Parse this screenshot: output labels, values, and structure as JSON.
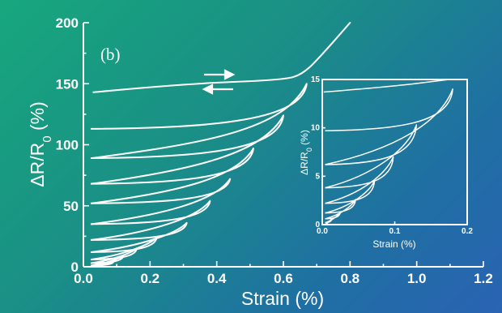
{
  "chart_data": [
    {
      "type": "line",
      "panel_label": "(b)",
      "xlabel": "Strain (%)",
      "ylabel": "ΔR/R₀ (%)",
      "xlim": [
        0.0,
        1.2
      ],
      "ylim": [
        0,
        200
      ],
      "xticks": [
        "0.0",
        "0.2",
        "0.4",
        "0.6",
        "0.8",
        "1.0",
        "1.2"
      ],
      "yticks": [
        "0",
        "50",
        "100",
        "150",
        "200"
      ],
      "grid": false,
      "loops": [
        {
          "peak_strain": 0.09,
          "peak_value": 4,
          "final_value": 1
        },
        {
          "peak_strain": 0.12,
          "peak_value": 9,
          "final_value": 3
        },
        {
          "peak_strain": 0.16,
          "peak_value": 15,
          "final_value": 6
        },
        {
          "peak_strain": 0.22,
          "peak_value": 24,
          "final_value": 12
        },
        {
          "peak_strain": 0.31,
          "peak_value": 36,
          "final_value": 22
        },
        {
          "peak_strain": 0.38,
          "peak_value": 54,
          "final_value": 35
        },
        {
          "peak_strain": 0.44,
          "peak_value": 72,
          "final_value": 52
        },
        {
          "peak_strain": 0.51,
          "peak_value": 97,
          "final_value": 68
        },
        {
          "peak_strain": 0.6,
          "peak_value": 124,
          "final_value": 89
        },
        {
          "peak_strain": 0.67,
          "peak_value": 150,
          "final_value": 113
        }
      ],
      "final_loading": {
        "start_value": 143,
        "points": [
          [
            0.03,
            143
          ],
          [
            0.3,
            150
          ],
          [
            0.6,
            153
          ],
          [
            0.66,
            158
          ],
          [
            0.72,
            175
          ],
          [
            0.8,
            200
          ]
        ]
      }
    },
    {
      "type": "line",
      "xlabel": "Strain (%)",
      "ylabel": "ΔR/R₀ (%)",
      "xlim": [
        0.0,
        0.2
      ],
      "ylim": [
        0,
        15
      ],
      "xticks": [
        "0.0",
        "0.1",
        "0.2"
      ],
      "yticks": [
        "0",
        "5",
        "10",
        "15"
      ],
      "grid": false,
      "loops": [
        {
          "peak_strain": 0.013,
          "peak_value": 0.6,
          "final_value": 0.2
        },
        {
          "peak_strain": 0.025,
          "peak_value": 1.3,
          "final_value": 0.6
        },
        {
          "peak_strain": 0.046,
          "peak_value": 2.6,
          "final_value": 1.2
        },
        {
          "peak_strain": 0.072,
          "peak_value": 4.5,
          "final_value": 2.2
        },
        {
          "peak_strain": 0.098,
          "peak_value": 7.0,
          "final_value": 3.8
        },
        {
          "peak_strain": 0.13,
          "peak_value": 10.3,
          "final_value": 6.2
        },
        {
          "peak_strain": 0.18,
          "peak_value": 14.0,
          "final_value": 9.7
        }
      ],
      "final_loading": {
        "start_value": 13.7,
        "points": [
          [
            0.002,
            13.7
          ],
          [
            0.1,
            14.3
          ],
          [
            0.175,
            15.0
          ]
        ]
      }
    }
  ]
}
